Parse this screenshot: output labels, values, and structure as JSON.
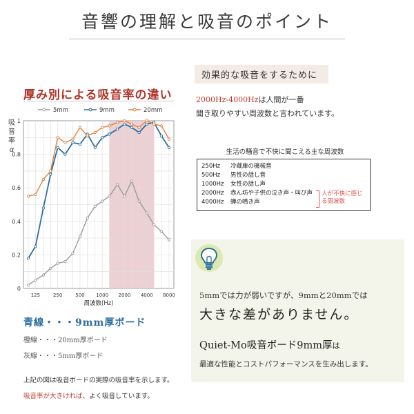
{
  "page": {
    "title": "音響の理解と吸音のポイント"
  },
  "chart_section": {
    "heading": "厚み別による吸音率の違い",
    "ylabel_chars": [
      "吸",
      "音",
      "率",
      "α"
    ],
    "xlabel": "周波数(Hz)"
  },
  "chart_data": {
    "type": "line",
    "xlabel": "周波数(Hz)",
    "ylabel": "吸音率α",
    "ylim": [
      0,
      1
    ],
    "yticks": [
      "0",
      "0.2",
      "0.4",
      "0.6",
      "0.8",
      "1"
    ],
    "xticks": [
      "125",
      "250",
      "500",
      "1000",
      "2000",
      "4000",
      "8000"
    ],
    "x_scale": "log",
    "x": [
      100,
      125,
      160,
      200,
      250,
      315,
      400,
      500,
      630,
      800,
      1000,
      1250,
      1600,
      2000,
      2500,
      3150,
      4000,
      5000,
      6300,
      8000
    ],
    "highlight_range": [
      1250,
      5000
    ],
    "legend_position": "top",
    "series": [
      {
        "name": "5mm",
        "color": "#9a9a9a",
        "values": [
          0.02,
          0.05,
          0.08,
          0.12,
          0.15,
          0.16,
          0.21,
          0.31,
          0.42,
          0.49,
          0.52,
          0.55,
          0.62,
          0.55,
          0.64,
          0.52,
          0.45,
          0.38,
          0.34,
          0.29
        ]
      },
      {
        "name": "9mm",
        "color": "#2c6e9e",
        "values": [
          0.18,
          0.25,
          0.48,
          0.68,
          0.84,
          0.8,
          0.87,
          0.86,
          0.92,
          0.84,
          0.9,
          0.92,
          0.95,
          0.98,
          0.96,
          0.93,
          0.98,
          0.99,
          0.91,
          0.84
        ]
      },
      {
        "name": "20mm",
        "color": "#e0813a",
        "values": [
          0.55,
          0.56,
          0.65,
          0.7,
          0.9,
          0.87,
          0.89,
          0.96,
          0.91,
          0.93,
          0.96,
          0.97,
          0.99,
          1.0,
          0.98,
          0.96,
          1.0,
          0.98,
          0.97,
          0.89
        ]
      }
    ]
  },
  "legend_text": {
    "blue": "青線・・・9mm厚ボード",
    "orange": "橙線・・・20mm厚ボード",
    "gray": "灰線・・・5mm厚ボード"
  },
  "notes": {
    "line1": "上記の図は吸音ボードの実際の吸音率を示します。",
    "line2_red": "吸音率が大きければ",
    "line2_rest": "、よく吸音しています。"
  },
  "effective": {
    "heading": "効果的な吸音をするために",
    "freq_red": "2000Hz-4000Hz",
    "freq_rest": "は人間が一番",
    "line2": "聞き取りやすい周波数と言われています。"
  },
  "noise": {
    "title": "生活の騒音で不快に聞こえる主な周波数",
    "rows": [
      {
        "hz": "250Hz",
        "label": "冷蔵庫の機械音"
      },
      {
        "hz": "500Hz",
        "label": "男性の話し音"
      },
      {
        "hz": "1000Hz",
        "label": "女性の話し声"
      },
      {
        "hz": "2000Hz",
        "label": "赤ん坊や子供の泣き声・叫び声"
      },
      {
        "hz": "4000Hz",
        "label": "蝉の鳴き声"
      }
    ],
    "note_line1": "人が不快に感じ",
    "note_line2": "る周波数"
  },
  "info": {
    "line1": "5mmでは力が弱いですが、9mmと20mmでは",
    "line2": "大きな差がありません。",
    "line3_main": "Quiet-Mo吸音ボード9mm厚",
    "line3_small": "は",
    "line4": "最適な性能とコストパフォーマンスを生み出します。"
  },
  "colors": {
    "heading_red": "#b03428",
    "blue": "#2c6e9e",
    "orange": "#e0813a",
    "gray": "#9a9a9a",
    "highlight": "#e8c4c8",
    "info_box": "#f3f5ea"
  }
}
